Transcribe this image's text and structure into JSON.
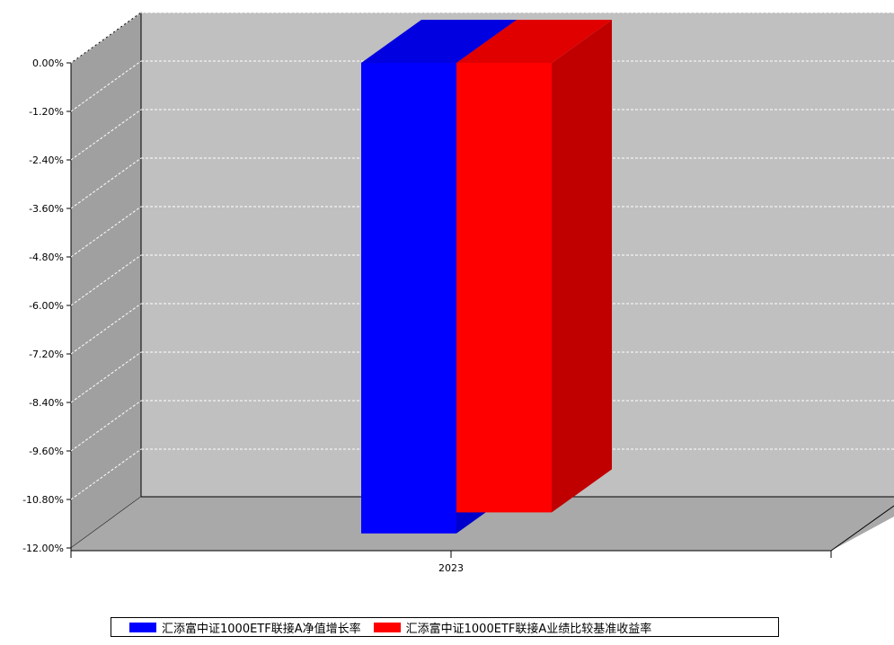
{
  "chart_data": {
    "type": "bar",
    "categories": [
      "2023"
    ],
    "series": [
      {
        "name": "汇添富中证1000ETF联接A净值增长率",
        "values": [
          -11.64
        ],
        "color": "#0000ff",
        "side_color": "#0000cc",
        "top_color": "#0000e0"
      },
      {
        "name": "汇添富中证1000ETF联接A业绩比较基准收益率",
        "values": [
          -11.12
        ],
        "color": "#ff0000",
        "side_color": "#c00000",
        "top_color": "#e00000"
      }
    ],
    "ylim": [
      -12.0,
      0.0
    ],
    "yticks": [
      "0.00%",
      "-1.20%",
      "-2.40%",
      "-3.60%",
      "-4.80%",
      "-6.00%",
      "-7.20%",
      "-8.40%",
      "-9.60%",
      "-10.80%",
      "-12.00%"
    ],
    "ytick_values": [
      0,
      -1.2,
      -2.4,
      -3.6,
      -4.8,
      -6.0,
      -7.2,
      -8.4,
      -9.6,
      -10.8,
      -12.0
    ],
    "grid": true,
    "style": "3d",
    "legend_position": "bottom",
    "colors": {
      "wall": "#c0c0c0",
      "side_wall": "#a0a0a0",
      "floor": "#a9a9a9",
      "grid": "#ffffff"
    }
  }
}
